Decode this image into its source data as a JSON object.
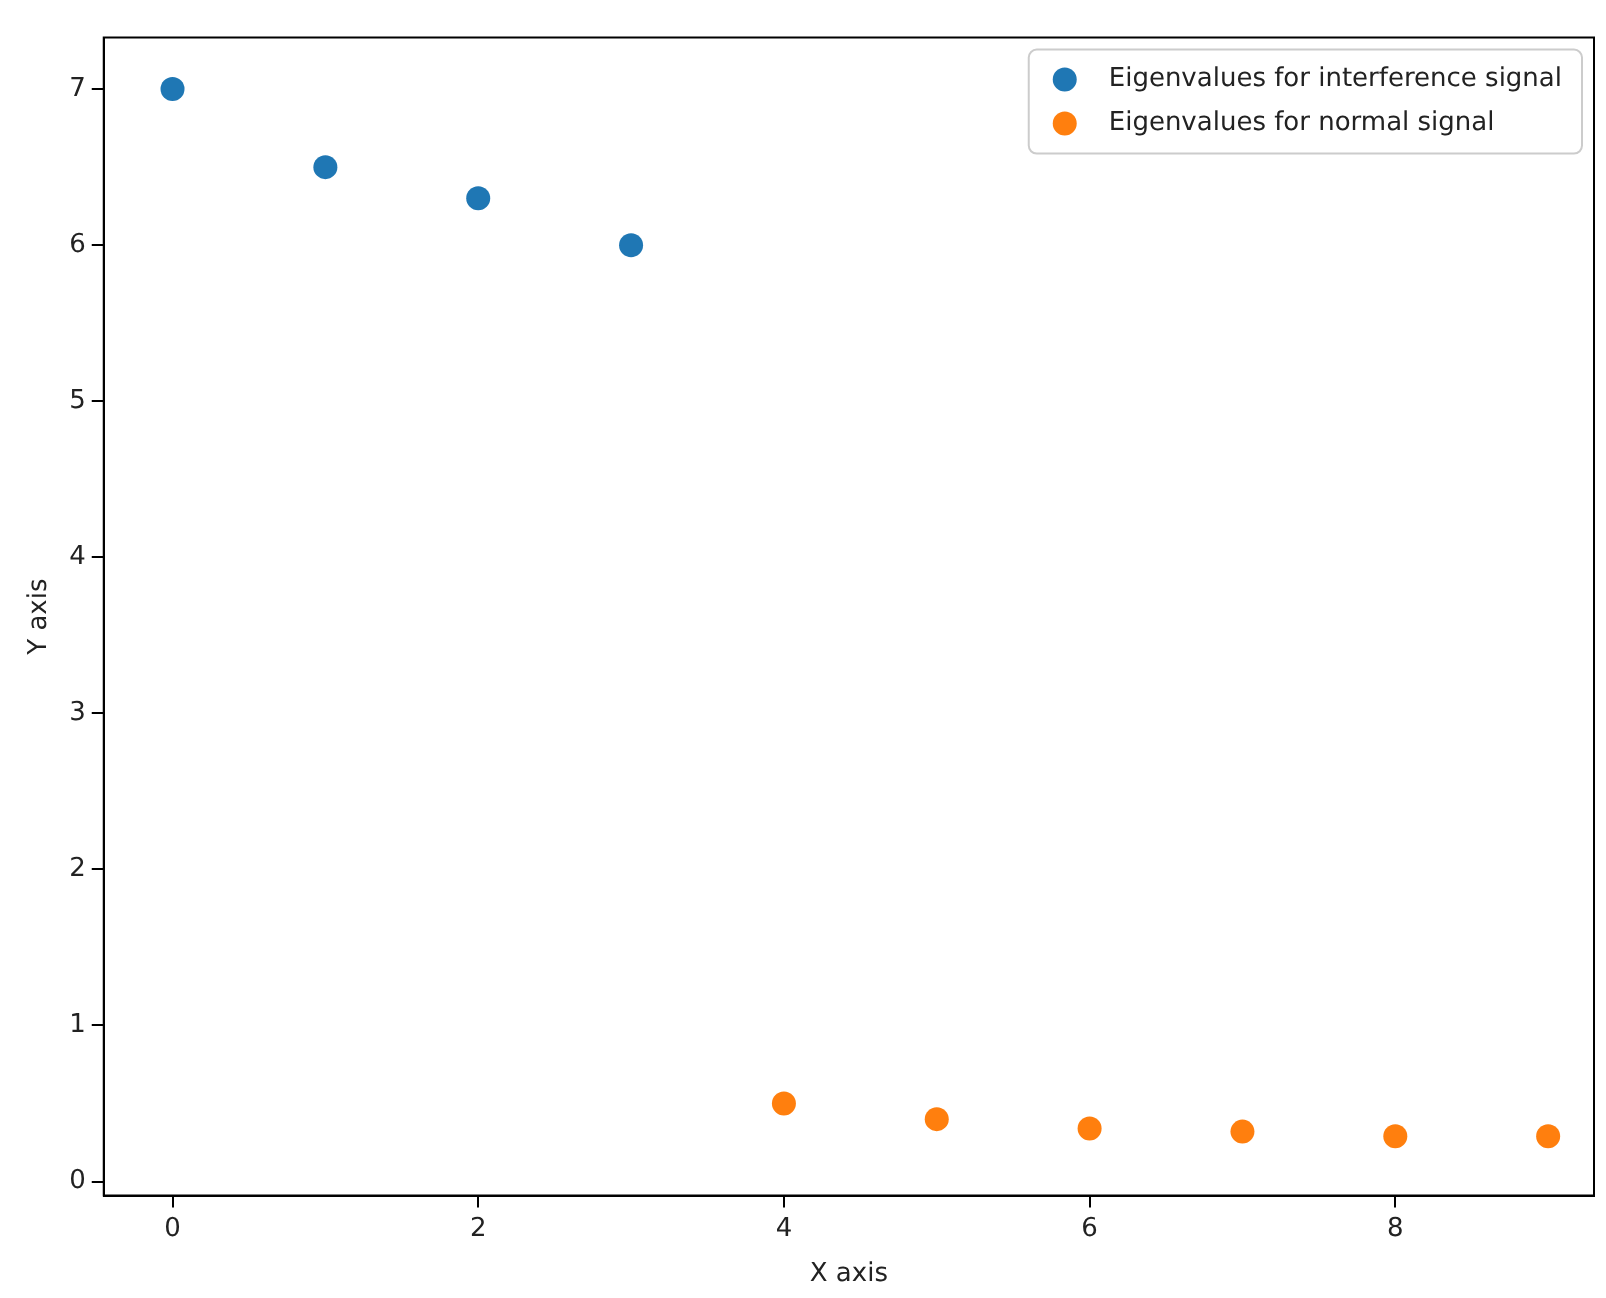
{
  "chart_data": {
    "type": "scatter",
    "xlabel": "X axis",
    "ylabel": "Y axis",
    "series": [
      {
        "name": "Eigenvalues for interference signal",
        "color": "#1f77b4",
        "x": [
          0,
          1,
          2,
          3
        ],
        "values": [
          7.0,
          6.5,
          6.3,
          6.0
        ]
      },
      {
        "name": "Eigenvalues for normal signal",
        "color": "#ff7f0e",
        "x": [
          4,
          5,
          6,
          7,
          8,
          9
        ],
        "values": [
          0.5,
          0.4,
          0.34,
          0.32,
          0.29,
          0.29
        ]
      }
    ],
    "xlim": [
      -0.45,
      9.3
    ],
    "xticks": [
      0,
      2,
      4,
      6,
      8
    ],
    "ylim": [
      -0.09,
      7.33
    ],
    "yticks": [
      0,
      1,
      2,
      3,
      4,
      5,
      6,
      7
    ],
    "grid": false,
    "legend": "top right",
    "marker": "circle"
  }
}
